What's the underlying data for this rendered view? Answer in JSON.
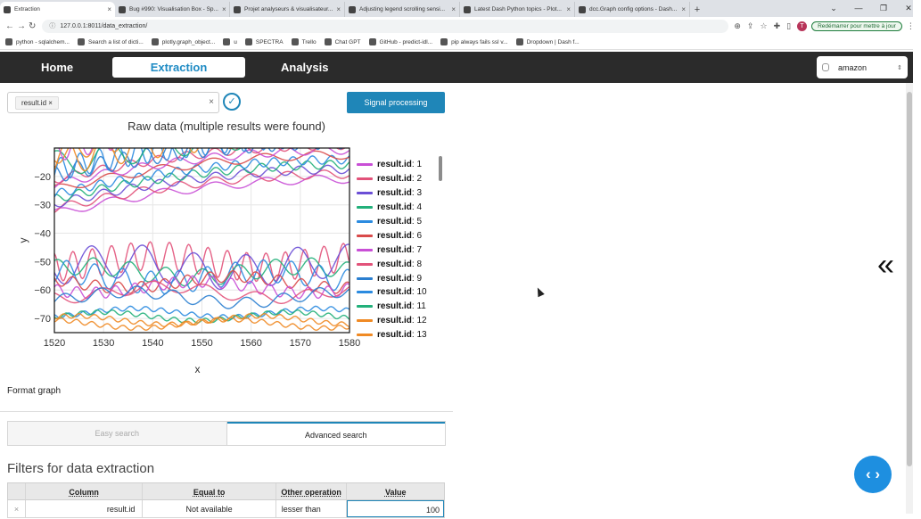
{
  "browser": {
    "tabs": [
      {
        "title": "Extraction",
        "active": true
      },
      {
        "title": "Bug #990: Visualisation Box - Sp..."
      },
      {
        "title": "Projet analyseurs & visualisateur..."
      },
      {
        "title": "Adjusting legend scrolling sensi..."
      },
      {
        "title": "Latest Dash Python topics - Plot..."
      },
      {
        "title": "dcc.Graph config options - Dash..."
      }
    ],
    "url": "127.0.0.1:8011/data_extraction/",
    "profile_initial": "T",
    "restart_label": "Redémarrer pour mettre à jour",
    "bookmarks": [
      "python - sqlalchem...",
      "Search a list of dicti...",
      "plotly.graph_object...",
      "u",
      "SPECTRA",
      "Trello",
      "Chat GPT",
      "GitHub - predict-idl...",
      "pip always fails ssl v...",
      "Dropdown | Dash f..."
    ]
  },
  "nav": {
    "home": "Home",
    "extraction": "Extraction",
    "analysis": "Analysis",
    "database": "amazon"
  },
  "controls": {
    "selected_chip": "result.id",
    "signal_button": "Signal processing"
  },
  "chart_data": {
    "type": "line",
    "title": "Raw data (multiple results were found)",
    "xlabel": "x",
    "ylabel": "y",
    "xlim": [
      1520,
      1580
    ],
    "ylim": [
      -75,
      -10
    ],
    "xticks": [
      1520,
      1530,
      1540,
      1550,
      1560,
      1570,
      1580
    ],
    "yticks": [
      -20,
      -30,
      -40,
      -50,
      -60,
      -70
    ],
    "legend_placement": "right",
    "series": [
      {
        "name": "result.id: 1",
        "color": "#c94fd6"
      },
      {
        "name": "result.id: 2",
        "color": "#e2527a"
      },
      {
        "name": "result.id: 3",
        "color": "#6b4fd6"
      },
      {
        "name": "result.id: 4",
        "color": "#22b07a"
      },
      {
        "name": "result.id: 5",
        "color": "#2b8be0"
      },
      {
        "name": "result.id: 6",
        "color": "#d94a4a"
      },
      {
        "name": "result.id: 7",
        "color": "#c94fd6"
      },
      {
        "name": "result.id: 8",
        "color": "#e2527a"
      },
      {
        "name": "result.id: 9",
        "color": "#2b7fd0"
      },
      {
        "name": "result.id: 10",
        "color": "#2b8be0"
      },
      {
        "name": "result.id: 11",
        "color": "#22b07a"
      },
      {
        "name": "result.id: 12",
        "color": "#f08a24"
      },
      {
        "name": "result.id: 13",
        "color": "#f08a24"
      }
    ]
  },
  "format_graph": "Format graph",
  "search_tabs": {
    "easy": "Easy search",
    "advanced": "Advanced search"
  },
  "filters": {
    "title": "Filters for data extraction",
    "columns": [
      "Column",
      "Equal to",
      "Other operation",
      "Value"
    ],
    "rows": [
      {
        "remove": "×",
        "column": "result.id",
        "equal": "Not available",
        "operation": "lesser than",
        "value": "100"
      }
    ]
  }
}
